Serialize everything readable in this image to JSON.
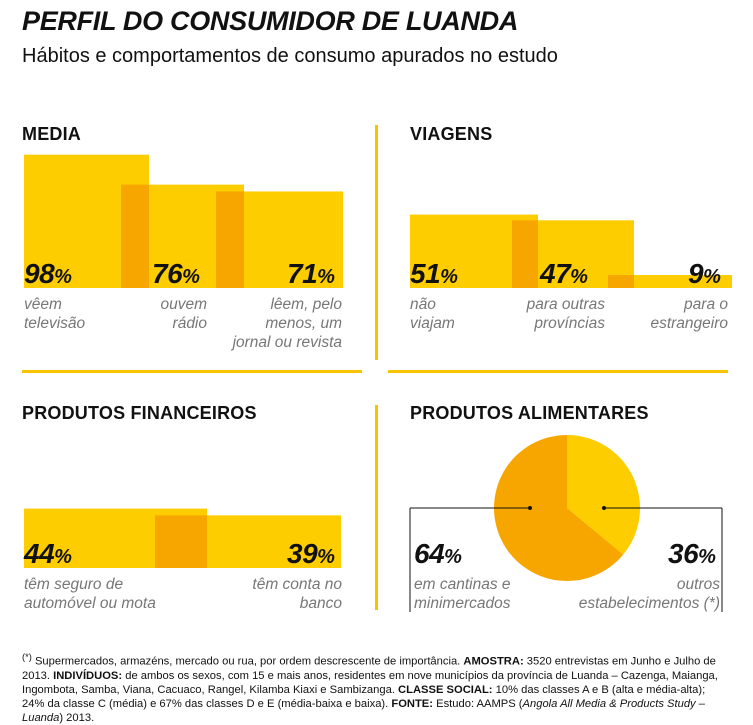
{
  "title": "PERFIL DO CONSUMIDOR DE LUANDA",
  "subtitle": "Hábitos e comportamentos de consumo apurados no estudo",
  "colors": {
    "yellow": "#fdcd00",
    "orange": "#f7a600",
    "rule": "#f8c400"
  },
  "chart_data": [
    {
      "type": "bar",
      "title": "MEDIA",
      "unit": "%",
      "values": [
        98,
        76,
        71
      ],
      "value_labels": [
        "98%",
        "76%",
        "71%"
      ],
      "categories": [
        "vêem televisão",
        "ouvem rádio",
        "lêem, pelo menos, um jornal ou revista"
      ]
    },
    {
      "type": "bar",
      "title": "VIAGENS",
      "unit": "%",
      "values": [
        51,
        47,
        9
      ],
      "value_labels": [
        "51%",
        "47%",
        "9%"
      ],
      "categories": [
        "não viajam",
        "para outras províncias",
        "para o estrangeiro"
      ]
    },
    {
      "type": "bar",
      "title": "PRODUTOS FINANCEIROS",
      "unit": "%",
      "values": [
        44,
        39
      ],
      "value_labels": [
        "44%",
        "39%"
      ],
      "categories": [
        "têm seguro de automóvel ou mota",
        "têm conta no banco"
      ]
    },
    {
      "type": "pie",
      "title": "PRODUTOS ALIMENTARES",
      "unit": "%",
      "values": [
        64,
        36
      ],
      "value_labels": [
        "64%",
        "36%"
      ],
      "categories": [
        "em cantinas e minimercados",
        "outros estabelecimentos (*)"
      ]
    }
  ],
  "footnote": {
    "star": "(*)",
    "intro": " Supermercados, armazéns, mercado ou rua, por ordem descrescente de importância. ",
    "amostra_label": "AMOSTRA:",
    "amostra_text": " 3520 entrevistas em Junho e Julho de 2013. ",
    "individuos_label": "INDIVÍDUOS:",
    "individuos_text": " de ambos os sexos, com 15 e mais anos, residentes em nove municípios da província de Luanda – Cazenga, Maianga, Ingombota, Samba, Viana, Cacuaco, Rangel, Kilamba Kiaxi e Sambizanga. ",
    "classe_label": "CLASSE SOCIAL:",
    "classe_text": " 10% das classes A e B (alta e média-alta); 24% da classe C (média) e 67% das classes D e E (média-baixa e baixa). ",
    "fonte_label": "FONTE:",
    "fonte_text_1": " Estudo: AAMPS (",
    "fonte_study": "Angola All Media & Products Study – Luanda",
    "fonte_text_2": ") 2013."
  }
}
